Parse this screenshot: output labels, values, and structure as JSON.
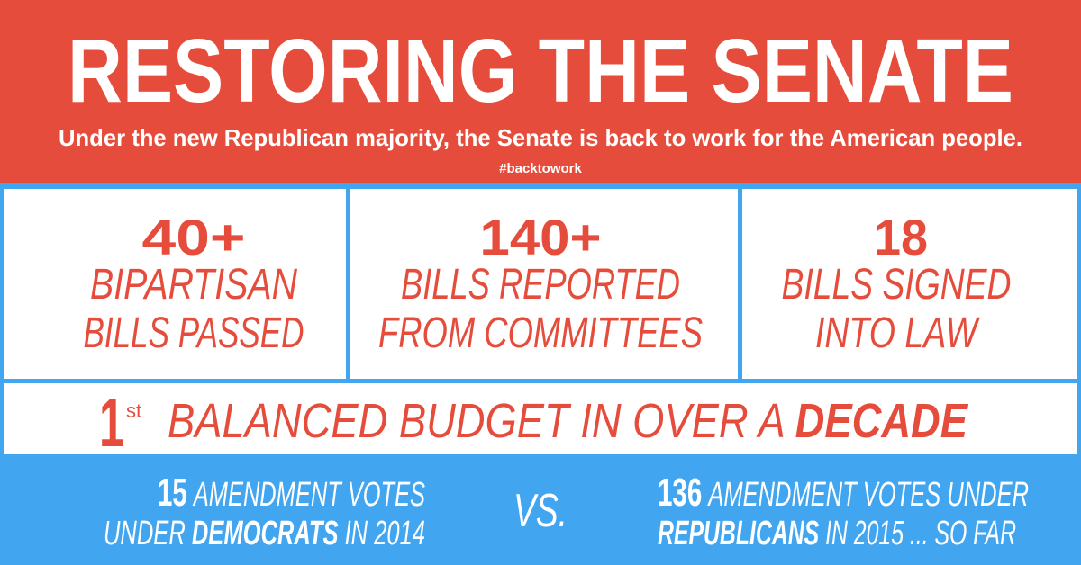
{
  "header": {
    "title": "RESTORING THE SENATE",
    "subtitle": "Under the new Republican majority, the Senate is back to work for the American people.",
    "hashtag": "#backtowork"
  },
  "stats": [
    {
      "number": "40+",
      "lines": [
        "BIPARTISAN",
        "BILLS PASSED"
      ]
    },
    {
      "number": "140+",
      "lines": [
        "BILLS REPORTED",
        "FROM COMMITTEES"
      ]
    },
    {
      "number": "18",
      "lines": [
        "BILLS SIGNED",
        "INTO LAW"
      ]
    }
  ],
  "budget": {
    "number": "1",
    "suffix": "st",
    "text": "BALANCED BUDGET IN OVER A",
    "emphasis": "DECADE"
  },
  "comparison": {
    "left": {
      "number": "15",
      "line1": "AMENDMENT VOTES",
      "line2_pre": "UNDER",
      "party": "DEMOCRATS",
      "line2_post": "IN 2014"
    },
    "vs": "VS.",
    "right": {
      "number": "136",
      "line1": "AMENDMENT VOTES UNDER",
      "party": "REPUBLICANS",
      "line2_post": "IN 2015 ... SO FAR"
    }
  }
}
